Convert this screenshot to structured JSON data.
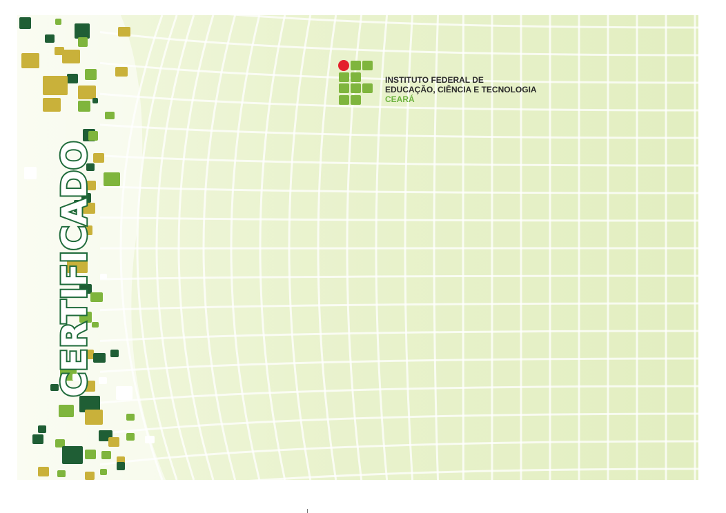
{
  "certificate": {
    "title": "CERTIFICADO",
    "institution": {
      "line1": "INSTITUTO FEDERAL DE",
      "line2": "EDUCAÇÃO, CIÊNCIA E TECNOLOGIA",
      "line3": "CEARÁ",
      "logo_icon": "if-logo-icon"
    },
    "colors": {
      "dark_green": "#1f5e35",
      "light_green": "#7fb53d",
      "gold": "#c9b13a",
      "logo_red": "#e3202b",
      "background": "#eaf3cf"
    }
  }
}
